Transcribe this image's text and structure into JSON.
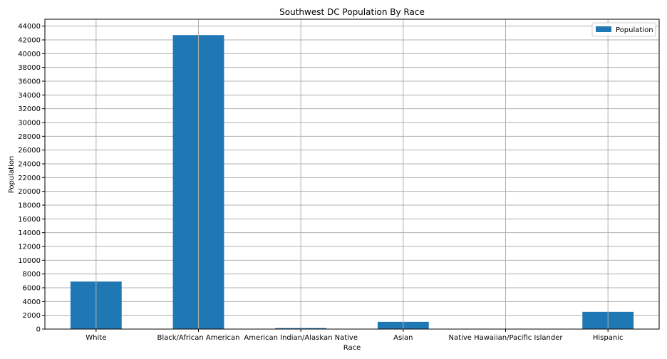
{
  "chart_data": {
    "type": "bar",
    "title": "Southwest DC Population By Race",
    "xlabel": "Race",
    "ylabel": "Population",
    "categories": [
      "White",
      "Black/African American",
      "American Indian/Alaskan Native",
      "Asian",
      "Native Hawaiian/Pacific Islander",
      "Hispanic"
    ],
    "series": [
      {
        "name": "Population",
        "values": [
          6900,
          42700,
          150,
          1050,
          30,
          2500
        ]
      }
    ],
    "ylim": [
      0,
      45000
    ],
    "yticks": [
      0,
      2000,
      4000,
      6000,
      8000,
      10000,
      12000,
      14000,
      16000,
      18000,
      20000,
      22000,
      24000,
      26000,
      28000,
      30000,
      32000,
      34000,
      36000,
      38000,
      40000,
      42000,
      44000
    ],
    "grid": true,
    "legend_position": "top-right",
    "bar_color": "#1f77b4"
  }
}
